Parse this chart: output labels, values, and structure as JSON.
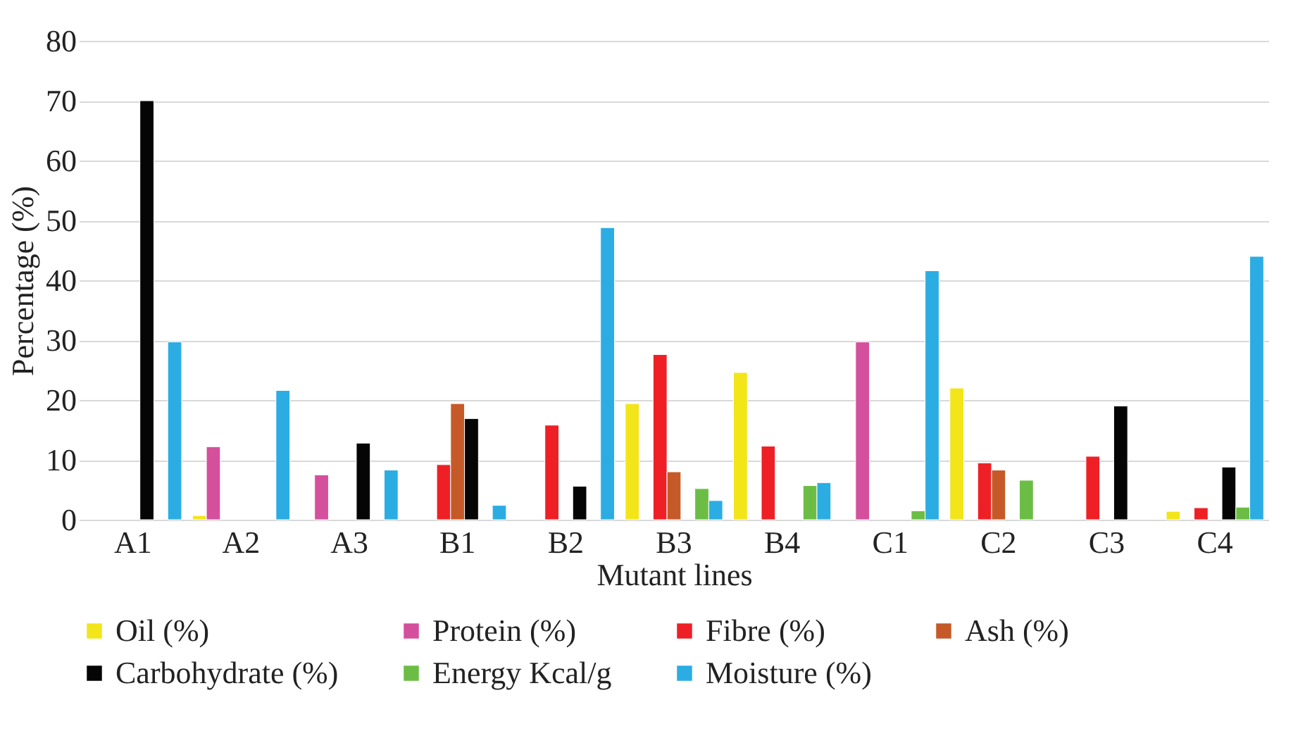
{
  "chart_data": {
    "type": "bar",
    "xlabel": "Mutant lines",
    "ylabel": "Percentage (%)",
    "categories": [
      "A1",
      "A2",
      "A3",
      "B1",
      "B2",
      "B3",
      "B4",
      "C1",
      "C2",
      "C3",
      "C4"
    ],
    "series": [
      {
        "name": "Oil (%)",
        "color": "#f2e51a",
        "values": [
          null,
          0.7,
          null,
          null,
          null,
          19.4,
          24.6,
          null,
          22.0,
          null,
          1.4
        ]
      },
      {
        "name": "Protein (%)",
        "color": "#d4509c",
        "values": [
          null,
          12.2,
          7.5,
          null,
          null,
          null,
          null,
          29.7,
          null,
          null,
          null
        ]
      },
      {
        "name": "Fibre (%)",
        "color": "#ee2026",
        "values": [
          null,
          null,
          null,
          9.2,
          15.8,
          27.6,
          12.3,
          null,
          9.5,
          10.6,
          2.0
        ]
      },
      {
        "name": "Ash (%)",
        "color": "#c55a28",
        "values": [
          null,
          null,
          null,
          19.4,
          null,
          8.0,
          null,
          null,
          8.3,
          null,
          null
        ]
      },
      {
        "name": "Carbohydrate (%)",
        "color": "#050505",
        "values": [
          70.0,
          null,
          12.8,
          16.9,
          5.6,
          null,
          null,
          null,
          null,
          19.0,
          8.8
        ]
      },
      {
        "name": "Energy Kcal/g",
        "color": "#6cbd45",
        "values": [
          null,
          null,
          null,
          null,
          null,
          5.2,
          5.7,
          1.5,
          6.6,
          null,
          2.1
        ]
      },
      {
        "name": "Moisture (%)",
        "color": "#2badE4",
        "values": [
          29.7,
          21.6,
          8.3,
          2.4,
          48.8,
          3.2,
          6.2,
          41.6,
          null,
          null,
          44.0
        ]
      }
    ],
    "ylim": [
      0,
      80
    ],
    "yticks": [
      0,
      10,
      20,
      30,
      40,
      50,
      60,
      70,
      80
    ],
    "grid": "y",
    "legend": "bottom"
  }
}
